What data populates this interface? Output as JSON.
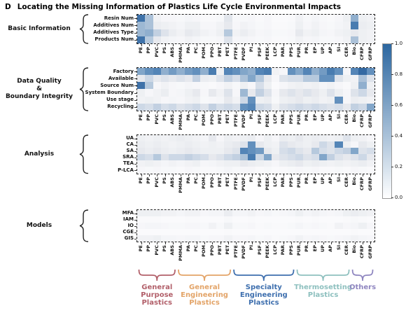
{
  "title": {
    "panel": "D",
    "text": "Locating the Missing Information of Plastics Life Cycle Environmental Impacts"
  },
  "chart_data": {
    "type": "heatmap",
    "title": "D  Locating the Missing Information of Plastics Life Cycle Environmental Impacts",
    "colormap": "white-to-blue (matplotlib Blues style)",
    "color_max": "#2c67a0",
    "columns": [
      "PE",
      "PP",
      "PVC",
      "PS",
      "ABS",
      "PMMA",
      "PA",
      "PC",
      "POM",
      "PPO",
      "PBT",
      "PET",
      "PTFE",
      "PVDF",
      "PI",
      "PSF",
      "PEEK",
      "LCP",
      "PAR",
      "PPS",
      "PUR",
      "PR",
      "EP",
      "UP",
      "AP",
      "SI",
      "CER",
      "Bio",
      "CFRP",
      "GFRP"
    ],
    "colorbar": {
      "min": 0.0,
      "max": 1.0,
      "ticks": [
        "1.0",
        "0.8",
        "0.6",
        "0.4",
        "0.2",
        "0.0"
      ]
    },
    "sections": [
      {
        "name": "Basic Information",
        "label_lines": [
          "Basic Information"
        ],
        "rows": [
          "Resin Num",
          "Additives Num",
          "Additives Type",
          "Products Num"
        ],
        "values": [
          [
            0.85,
            0.45,
            0.08,
            0.05,
            0.05,
            0.04,
            0.06,
            0.05,
            0.03,
            0.03,
            0.04,
            0.18,
            0.04,
            0.04,
            0.05,
            0.03,
            0.05,
            0.02,
            0.02,
            0.03,
            0.08,
            0.04,
            0.06,
            0.04,
            0.03,
            0.05,
            0.1,
            0.55,
            0.1,
            0.08
          ],
          [
            0.5,
            0.45,
            0.12,
            0.1,
            0.08,
            0.06,
            0.1,
            0.1,
            0.05,
            0.05,
            0.08,
            0.15,
            0.05,
            0.08,
            0.06,
            0.04,
            0.05,
            0.03,
            0.03,
            0.04,
            0.1,
            0.05,
            0.08,
            0.05,
            0.04,
            0.06,
            0.08,
            0.8,
            0.12,
            0.1
          ],
          [
            0.5,
            0.55,
            0.35,
            0.2,
            0.12,
            0.08,
            0.15,
            0.12,
            0.08,
            0.06,
            0.1,
            0.4,
            0.08,
            0.12,
            0.08,
            0.05,
            0.06,
            0.04,
            0.04,
            0.05,
            0.15,
            0.08,
            0.1,
            0.06,
            0.05,
            0.08,
            0.1,
            0.15,
            0.1,
            0.08
          ],
          [
            0.85,
            0.4,
            0.15,
            0.08,
            0.06,
            0.05,
            0.08,
            0.06,
            0.04,
            0.04,
            0.05,
            0.2,
            0.05,
            0.06,
            0.05,
            0.04,
            0.05,
            0.03,
            0.03,
            0.04,
            0.08,
            0.05,
            0.06,
            0.04,
            0.04,
            0.05,
            0.08,
            0.45,
            0.1,
            0.08
          ]
        ]
      },
      {
        "name": "Data Quality & Boundary Integrity",
        "label_lines": [
          "Data Quality",
          "&",
          "Boundary Integrity"
        ],
        "rows": [
          "Factory",
          "Available",
          "Source Num",
          "System Boundary",
          "Use stage",
          "Recycling"
        ],
        "values": [
          [
            0.6,
            0.7,
            0.75,
            0.55,
            0.65,
            0.55,
            0.65,
            0.7,
            0.55,
            0.8,
            0.1,
            0.75,
            0.7,
            0.6,
            0.55,
            0.75,
            0.8,
            0.08,
            0.05,
            0.7,
            0.6,
            0.75,
            0.55,
            0.65,
            0.8,
            0.7,
            0.05,
            0.75,
            0.9,
            0.7
          ],
          [
            0.15,
            0.3,
            0.15,
            0.2,
            0.15,
            0.2,
            0.15,
            0.35,
            0.12,
            0.1,
            0.2,
            0.35,
            0.25,
            0.45,
            0.6,
            0.4,
            0.15,
            0.05,
            0.2,
            0.25,
            0.25,
            0.4,
            0.4,
            0.7,
            0.7,
            0.2,
            0.1,
            0.08,
            0.45,
            0.2
          ],
          [
            0.85,
            0.4,
            0.05,
            0.08,
            0.05,
            0.04,
            0.06,
            0.05,
            0.04,
            0.03,
            0.05,
            0.08,
            0.04,
            0.1,
            0.05,
            0.25,
            0.1,
            0.02,
            0.05,
            0.08,
            0.1,
            0.08,
            0.1,
            0.06,
            0.08,
            0.05,
            0.03,
            0.1,
            0.55,
            0.1
          ],
          [
            0.1,
            0.05,
            0.08,
            0.12,
            0.05,
            0.06,
            0.1,
            0.15,
            0.05,
            0.15,
            0.08,
            0.2,
            0.05,
            0.5,
            0.15,
            0.35,
            0.2,
            0.05,
            0.15,
            0.2,
            0.15,
            0.2,
            0.15,
            0.1,
            0.2,
            0.1,
            0.05,
            0.2,
            0.3,
            0.15
          ],
          [
            0.08,
            0.1,
            0.08,
            0.05,
            0.06,
            0.05,
            0.08,
            0.1,
            0.04,
            0.05,
            0.06,
            0.15,
            0.08,
            0.3,
            0.7,
            0.1,
            0.12,
            0.04,
            0.1,
            0.12,
            0.15,
            0.1,
            0.12,
            0.08,
            0.1,
            0.7,
            0.05,
            0.12,
            0.1,
            0.08
          ],
          [
            0.3,
            0.25,
            0.35,
            0.25,
            0.3,
            0.2,
            0.25,
            0.3,
            0.2,
            0.35,
            0.25,
            0.3,
            0.25,
            0.7,
            0.75,
            0.3,
            0.25,
            0.1,
            0.2,
            0.25,
            0.3,
            0.25,
            0.3,
            0.25,
            0.2,
            0.25,
            0.15,
            0.35,
            0.3,
            0.6
          ]
        ]
      },
      {
        "name": "Analysis",
        "label_lines": [
          "Analysis"
        ],
        "rows": [
          "UA",
          "CA",
          "SA",
          "SRA",
          "TEA",
          "P-LCA"
        ],
        "values": [
          [
            0.1,
            0.08,
            0.1,
            0.08,
            0.1,
            0.12,
            0.1,
            0.08,
            0.06,
            0.15,
            0.05,
            0.1,
            0.08,
            0.1,
            0.12,
            0.05,
            0.1,
            0.05,
            0.12,
            0.1,
            0.15,
            0.1,
            0.12,
            0.1,
            0.08,
            0.1,
            0.2,
            0.1,
            0.08,
            0.05
          ],
          [
            0.12,
            0.1,
            0.12,
            0.1,
            0.08,
            0.1,
            0.12,
            0.1,
            0.08,
            0.1,
            0.08,
            0.12,
            0.15,
            0.2,
            0.7,
            0.15,
            0.1,
            0.08,
            0.2,
            0.15,
            0.12,
            0.1,
            0.15,
            0.3,
            0.2,
            0.75,
            0.1,
            0.05,
            0.15,
            0.1
          ],
          [
            0.15,
            0.12,
            0.15,
            0.12,
            0.1,
            0.12,
            0.15,
            0.12,
            0.1,
            0.1,
            0.1,
            0.15,
            0.2,
            0.75,
            0.7,
            0.65,
            0.15,
            0.1,
            0.25,
            0.3,
            0.2,
            0.15,
            0.4,
            0.25,
            0.2,
            0.3,
            0.35,
            0.6,
            0.2,
            0.25
          ],
          [
            0.3,
            0.25,
            0.4,
            0.2,
            0.3,
            0.3,
            0.35,
            0.3,
            0.25,
            0.15,
            0.2,
            0.3,
            0.35,
            0.45,
            0.8,
            0.3,
            0.6,
            0.15,
            0.2,
            0.25,
            0.3,
            0.2,
            0.25,
            0.6,
            0.35,
            0.2,
            0.15,
            0.2,
            0.3,
            0.15
          ],
          [
            0.08,
            0.1,
            0.08,
            0.06,
            0.08,
            0.06,
            0.08,
            0.1,
            0.05,
            0.06,
            0.08,
            0.1,
            0.1,
            0.15,
            0.12,
            0.1,
            0.08,
            0.05,
            0.1,
            0.12,
            0.15,
            0.1,
            0.12,
            0.1,
            0.08,
            0.1,
            0.08,
            0.1,
            0.12,
            0.08
          ],
          [
            0.05,
            0.04,
            0.05,
            0.04,
            0.04,
            0.03,
            0.05,
            0.04,
            0.03,
            0.03,
            0.04,
            0.06,
            0.04,
            0.05,
            0.05,
            0.03,
            0.04,
            0.02,
            0.03,
            0.04,
            0.05,
            0.04,
            0.05,
            0.03,
            0.03,
            0.04,
            0.03,
            0.05,
            0.04,
            0.03
          ]
        ]
      },
      {
        "name": "Models",
        "label_lines": [
          "Models"
        ],
        "rows": [
          "MFA",
          "IAM",
          "IO",
          "CGE",
          "GIS"
        ],
        "values": [
          [
            0.1,
            0.1,
            0.1,
            0.08,
            0.08,
            0.06,
            0.08,
            0.08,
            0.05,
            0.06,
            0.06,
            0.12,
            0.06,
            0.06,
            0.08,
            0.05,
            0.06,
            0.04,
            0.05,
            0.06,
            0.1,
            0.06,
            0.08,
            0.06,
            0.05,
            0.06,
            0.1,
            0.12,
            0.1,
            0.08
          ],
          [
            0.03,
            0.03,
            0.03,
            0.02,
            0.02,
            0.02,
            0.03,
            0.03,
            0.02,
            0.02,
            0.02,
            0.04,
            0.02,
            0.02,
            0.03,
            0.02,
            0.02,
            0.02,
            0.02,
            0.02,
            0.03,
            0.02,
            0.03,
            0.02,
            0.02,
            0.02,
            0.03,
            0.04,
            0.03,
            0.02
          ],
          [
            0.05,
            0.06,
            0.06,
            0.05,
            0.04,
            0.04,
            0.05,
            0.05,
            0.04,
            0.08,
            0.04,
            0.1,
            0.04,
            0.04,
            0.05,
            0.03,
            0.04,
            0.03,
            0.03,
            0.04,
            0.06,
            0.04,
            0.05,
            0.04,
            0.03,
            0.08,
            0.05,
            0.06,
            0.1,
            0.05
          ],
          [
            0.02,
            0.02,
            0.02,
            0.02,
            0.02,
            0.02,
            0.02,
            0.02,
            0.02,
            0.02,
            0.02,
            0.03,
            0.02,
            0.02,
            0.02,
            0.02,
            0.02,
            0.02,
            0.02,
            0.02,
            0.02,
            0.02,
            0.02,
            0.02,
            0.02,
            0.02,
            0.02,
            0.03,
            0.02,
            0.02
          ],
          [
            0.08,
            0.08,
            0.1,
            0.06,
            0.06,
            0.05,
            0.06,
            0.06,
            0.04,
            0.05,
            0.05,
            0.08,
            0.05,
            0.05,
            0.06,
            0.04,
            0.05,
            0.03,
            0.04,
            0.05,
            0.08,
            0.05,
            0.06,
            0.05,
            0.04,
            0.05,
            0.06,
            0.08,
            0.06,
            0.05
          ]
        ]
      }
    ],
    "column_groups": [
      {
        "label_lines": [
          "General",
          "Purpose",
          "Plastics"
        ],
        "start": 0,
        "end": 4,
        "color": "#b2606a"
      },
      {
        "label_lines": [
          "General",
          "Engineering",
          "Plastics"
        ],
        "start": 5,
        "end": 11,
        "color": "#e3a468"
      },
      {
        "label_lines": [
          "Specialty",
          "Engineering",
          "Plastics"
        ],
        "start": 12,
        "end": 19,
        "color": "#3e6fae"
      },
      {
        "label_lines": [
          "Thermosetting",
          "Plastics"
        ],
        "start": 20,
        "end": 26,
        "color": "#8ec0bf"
      },
      {
        "label_lines": [
          "Others"
        ],
        "start": 27,
        "end": 29,
        "color": "#8f86c0"
      }
    ]
  }
}
